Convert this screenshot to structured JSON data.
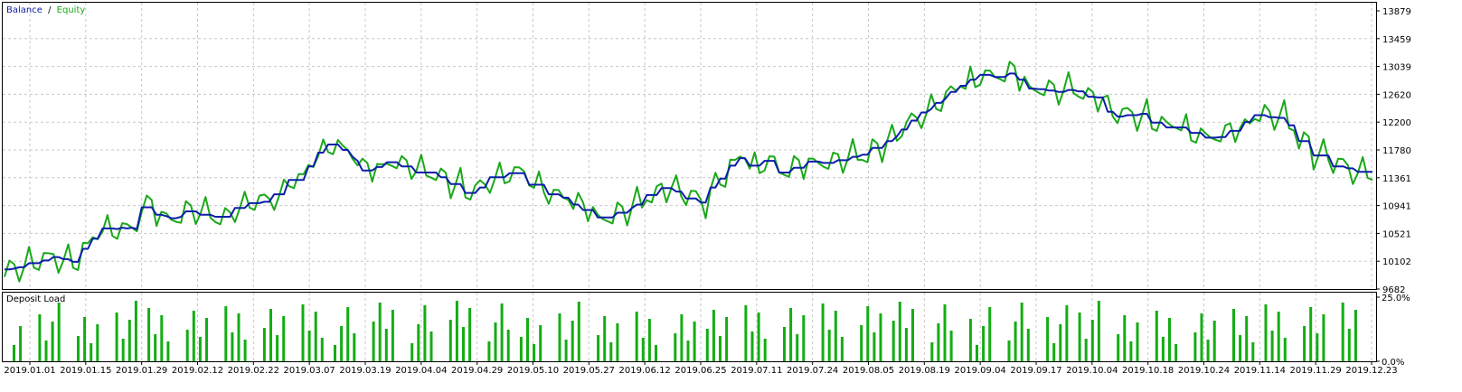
{
  "legend": {
    "balance_label": "Balance",
    "separator": "/",
    "equity_label": "Equity"
  },
  "colors": {
    "balance": "#0b1ea8",
    "equity": "#1aa81a",
    "grid": "#c8c8c8",
    "load": "#13ad13",
    "axis": "#000000"
  },
  "main_panel": {
    "y_ticks": [
      "13879",
      "13459",
      "13039",
      "12620",
      "12200",
      "11780",
      "11361",
      "10941",
      "10521",
      "10102",
      "9682"
    ]
  },
  "load_panel": {
    "title": "Deposit Load",
    "y_ticks": [
      "25.0%",
      "0.0%"
    ]
  },
  "x_ticks": [
    "2019.01.01",
    "2019.01.15",
    "2019.01.29",
    "2019.02.12",
    "2019.02.22",
    "2019.03.07",
    "2019.03.19",
    "2019.04.04",
    "2019.04.29",
    "2019.05.10",
    "2019.05.27",
    "2019.06.12",
    "2019.06.25",
    "2019.07.11",
    "2019.07.24",
    "2019.08.05",
    "2019.08.19",
    "2019.09.04",
    "2019.09.17",
    "2019.10.04",
    "2019.10.18",
    "2019.10.24",
    "2019.11.14",
    "2019.11.29",
    "2019.12.23"
  ],
  "chart_data": {
    "type": "line",
    "title": "",
    "ylim": [
      9682,
      13879
    ],
    "series": [
      {
        "name": "Balance",
        "values": [
          10050,
          10050,
          10060,
          10080,
          10080,
          10140,
          10140,
          10140,
          10180,
          10180,
          10230,
          10230,
          10200,
          10200,
          10160,
          10160,
          10350,
          10350,
          10500,
          10500,
          10650,
          10650,
          10650,
          10640,
          10660,
          10650,
          10660,
          10640,
          10960,
          10960,
          10960,
          10850,
          10850,
          10830,
          10800,
          10800,
          10820,
          10900,
          10900,
          10900,
          10850,
          10850,
          10850,
          10820,
          10820,
          10820,
          10820,
          10950,
          10950,
          10950,
          11020,
          11020,
          11020,
          11040,
          11040,
          11150,
          11150,
          11150,
          11360,
          11360,
          11360,
          11360,
          11560,
          11560,
          11760,
          11760,
          11880,
          11880,
          11880,
          11800,
          11800,
          11700,
          11640,
          11500,
          11500,
          11500,
          11550,
          11550,
          11620,
          11620,
          11620,
          11560,
          11560,
          11560,
          11470,
          11470,
          11470,
          11470,
          11470,
          11400,
          11400,
          11300,
          11300,
          11300,
          11170,
          11170,
          11170,
          11250,
          11250,
          11400,
          11400,
          11400,
          11400,
          11460,
          11460,
          11460,
          11460,
          11290,
          11290,
          11290,
          11290,
          11150,
          11150,
          11150,
          11100,
          11100,
          11000,
          11000,
          10920,
          10920,
          10920,
          10810,
          10810,
          10810,
          10810,
          10880,
          10880,
          10880,
          10950,
          11000,
          11000,
          11140,
          11140,
          11140,
          11240,
          11240,
          11240,
          11190,
          11190,
          11090,
          11090,
          11090,
          11030,
          11030,
          11250,
          11250,
          11380,
          11380,
          11570,
          11570,
          11680,
          11680,
          11570,
          11570,
          11570,
          11640,
          11640,
          11640,
          11470,
          11470,
          11470,
          11540,
          11540,
          11540,
          11630,
          11630,
          11630,
          11610,
          11610,
          11610,
          11650,
          11650,
          11650,
          11700,
          11700,
          11730,
          11730,
          11830,
          11830,
          11830,
          11930,
          11930,
          12000,
          12100,
          12100,
          12230,
          12230,
          12350,
          12350,
          12400,
          12490,
          12490,
          12560,
          12650,
          12650,
          12740,
          12740,
          12830,
          12830,
          12900,
          12900,
          12900,
          12870,
          12870,
          12870,
          12920,
          12920,
          12830,
          12830,
          12700,
          12700,
          12690,
          12690,
          12670,
          12670,
          12650,
          12650,
          12680,
          12680,
          12660,
          12660,
          12580,
          12580,
          12570,
          12570,
          12360,
          12360,
          12290,
          12290,
          12310,
          12310,
          12310,
          12330,
          12330,
          12200,
          12200,
          12200,
          12130,
          12130,
          12130,
          12130,
          12130,
          12050,
          12050,
          12050,
          11980,
          11980,
          11980,
          11990,
          11990,
          12080,
          12080,
          12080,
          12210,
          12210,
          12310,
          12310,
          12310,
          12280,
          12280,
          12270,
          12270,
          12160,
          12160,
          11930,
          11930,
          11930,
          11720,
          11720,
          11720,
          11720,
          11560,
          11560,
          11560,
          11530,
          11530,
          11480,
          11480,
          11480,
          11480
        ],
        "note": ""
      }
    ]
  },
  "load_data": {
    "ylim": [
      0,
      25
    ]
  }
}
